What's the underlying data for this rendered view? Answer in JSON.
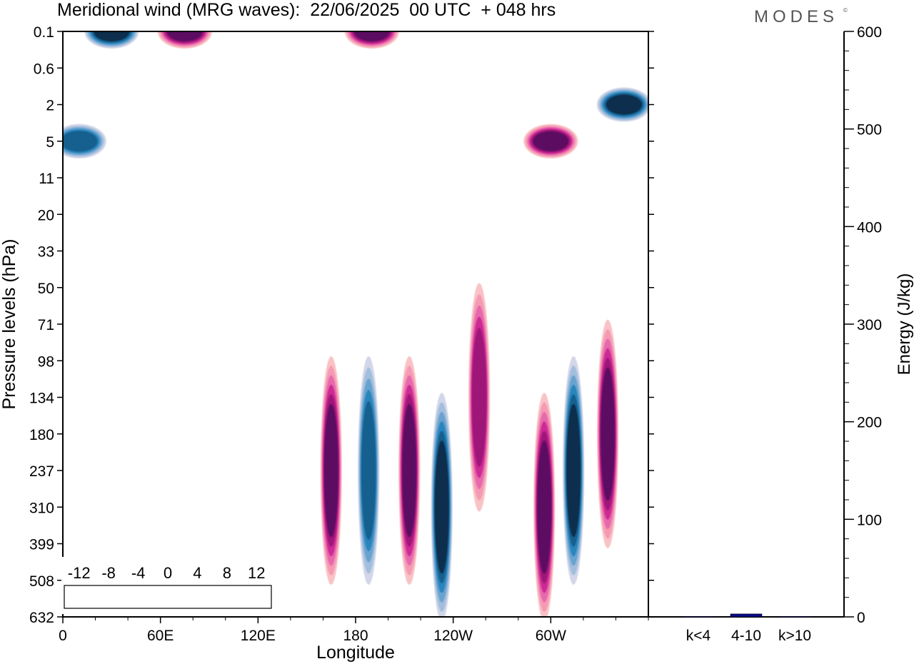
{
  "title": "Meridional wind (MRG waves):  22/06/2025  00 UTC  + 048 hrs",
  "brand": "MODES",
  "brand_mark": "©",
  "chart_data": [
    {
      "type": "heatmap",
      "name": "meridional-wind-contours",
      "xlabel": "Longitude",
      "ylabel": "Pressure levels (hPa)",
      "x_ticks": [
        "0",
        "60E",
        "120E",
        "180",
        "120W",
        "60W"
      ],
      "x_tick_values_deg_east": [
        0,
        60,
        120,
        180,
        240,
        300
      ],
      "xlim": [
        0,
        360
      ],
      "y_ticks": [
        "0.1",
        "0.6",
        "2",
        "5",
        "11",
        "20",
        "33",
        "50",
        "71",
        "98",
        "134",
        "180",
        "237",
        "310",
        "399",
        "508",
        "632"
      ],
      "y_scale": "model levels (log-like pressure)",
      "colorbar": {
        "labels": [
          "-12",
          "-8",
          "-4",
          "0",
          "4",
          "8",
          "12"
        ],
        "colors": [
          "#0b2f4e",
          "#17608f",
          "#2b85bd",
          "#67a3cf",
          "#a3bedd",
          "#d2d6e8",
          "#ffffff",
          "#ffffff",
          "#f9c2c4",
          "#f59ab4",
          "#e667ad",
          "#cd2a93",
          "#9e1278",
          "#5b0862"
        ]
      },
      "features": [
        {
          "lon": 165,
          "level": "237",
          "value": 12
        },
        {
          "lon": 188,
          "level": "237",
          "value": -9
        },
        {
          "lon": 213,
          "level": "237",
          "value": 14
        },
        {
          "lon": 233,
          "level": "310",
          "value": -14
        },
        {
          "lon": 256,
          "level": "134",
          "value": 9
        },
        {
          "lon": 296,
          "level": "310",
          "value": 11
        },
        {
          "lon": 314,
          "level": "237",
          "value": -13
        },
        {
          "lon": 335,
          "level": "180",
          "value": 12
        },
        {
          "lon": 75,
          "level": "0.1",
          "value": 13
        },
        {
          "lon": 190,
          "level": "0.1",
          "value": 16
        },
        {
          "lon": 30,
          "level": "0.1",
          "value": -13
        },
        {
          "lon": 300,
          "level": "5",
          "value": 12
        },
        {
          "lon": 345,
          "level": "2",
          "value": -13
        },
        {
          "lon": 10,
          "level": "5",
          "value": -10
        }
      ]
    },
    {
      "type": "bar",
      "name": "wave-energy",
      "categories": [
        "k<4",
        "4-10",
        "k>10"
      ],
      "values": [
        0.5,
        3,
        0.5
      ],
      "ylabel": "Energy (J/kg)",
      "ylim": [
        0,
        600
      ],
      "y_ticks": [
        "0",
        "100",
        "200",
        "300",
        "400",
        "500",
        "600"
      ],
      "bar_color": "#0a0a8c"
    }
  ]
}
